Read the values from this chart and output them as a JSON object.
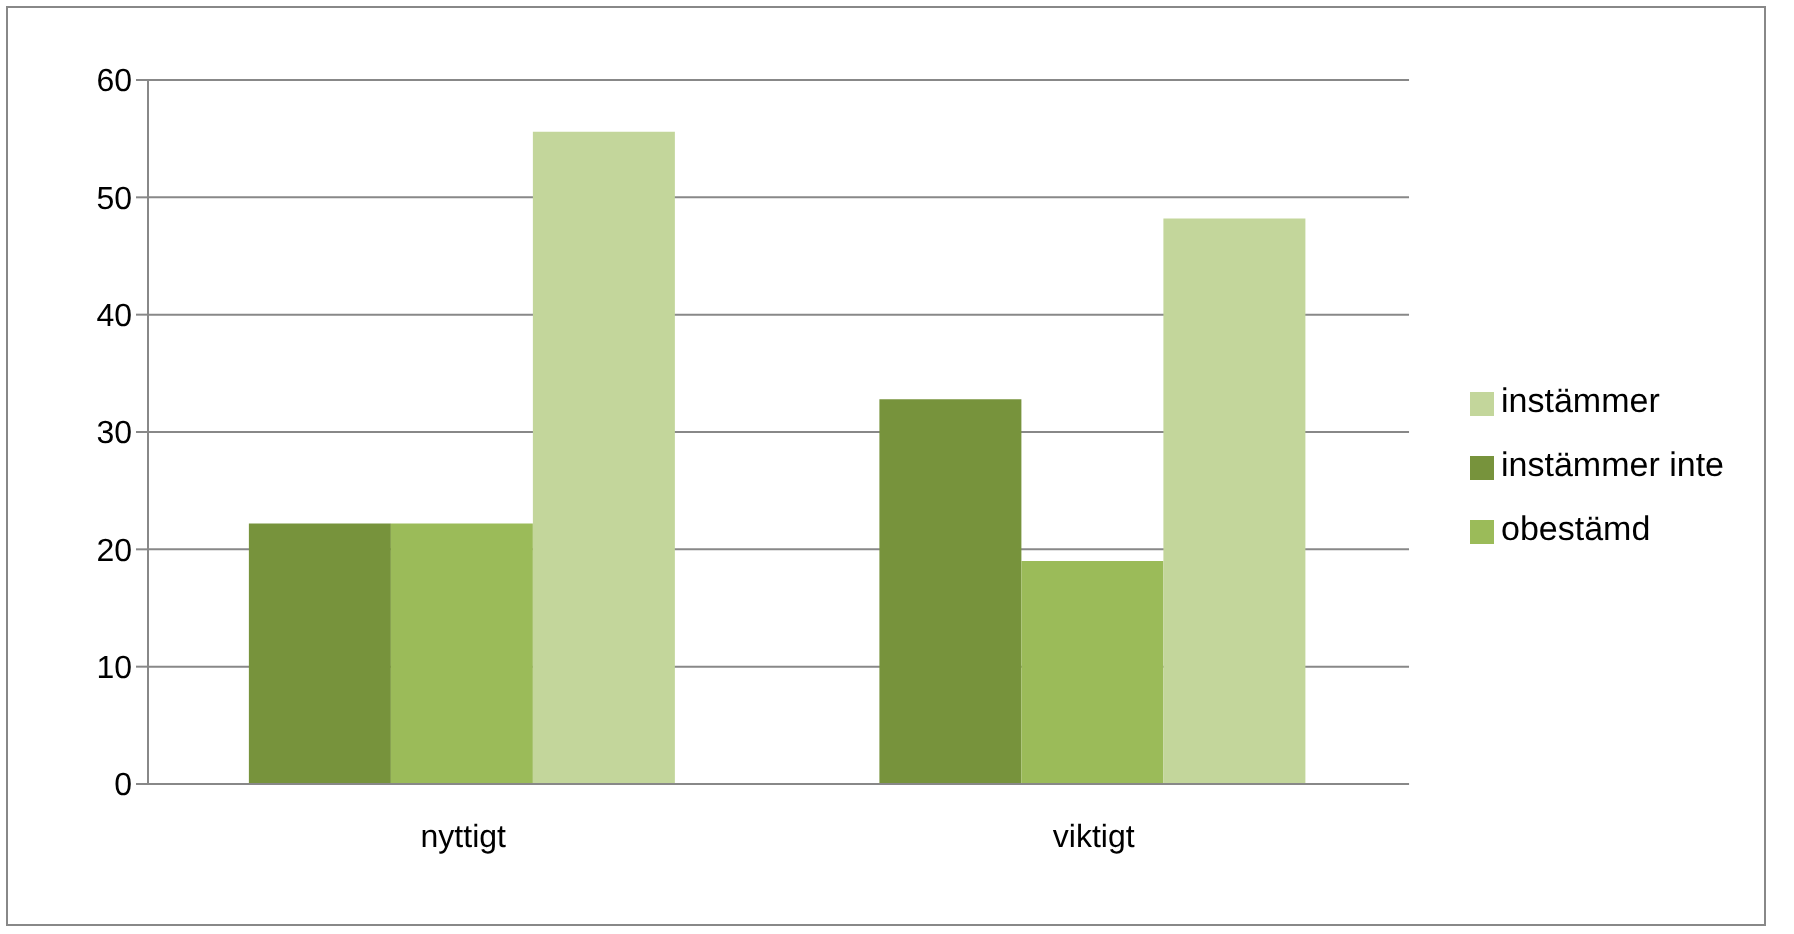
{
  "chart_data": {
    "type": "bar",
    "categories": [
      "nyttigt",
      "viktigt"
    ],
    "series": [
      {
        "name": "instämmer inte",
        "color": "#77933c",
        "values": [
          22.2,
          32.8
        ]
      },
      {
        "name": "obestämd",
        "color": "#9bbb59",
        "values": [
          22.2,
          19.0
        ]
      },
      {
        "name": "instämmer",
        "color": "#c3d69b",
        "values": [
          55.6,
          48.2
        ]
      }
    ],
    "ylim": [
      0,
      60
    ],
    "yticks": [
      0,
      10,
      20,
      30,
      40,
      50,
      60
    ],
    "grid": "y",
    "legend": "right"
  }
}
